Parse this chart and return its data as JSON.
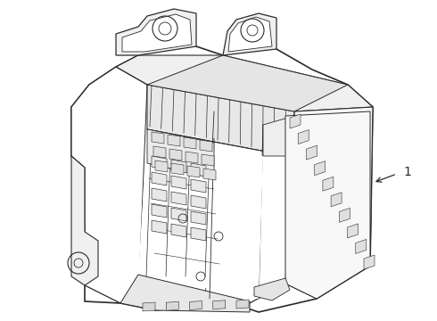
{
  "background_color": "#ffffff",
  "line_color": "#2a2a2a",
  "label_text": "1",
  "figsize": [
    4.9,
    3.6
  ],
  "dpi": 100,
  "xlim": [
    0,
    490
  ],
  "ylim": [
    0,
    360
  ]
}
